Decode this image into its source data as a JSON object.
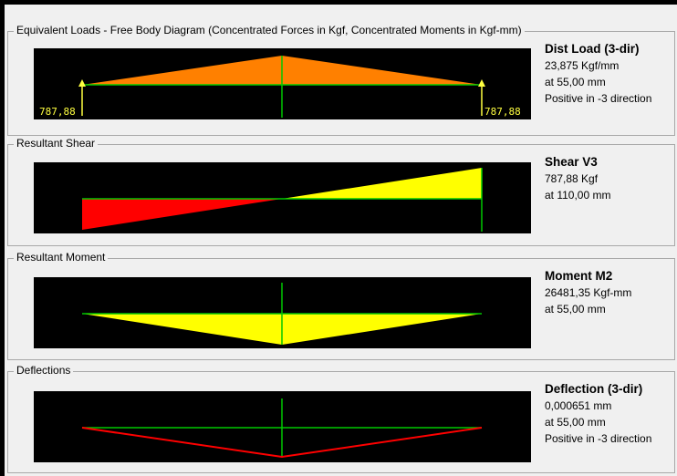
{
  "colors": {
    "background": "#000000",
    "panel": "#f0f0f0",
    "load_fill": "#ff8000",
    "positive_fill": "#ffff00",
    "negative_fill": "#ff0000",
    "axis": "#00c800",
    "deflection_line": "#ff0000",
    "end_label": "#ffff40"
  },
  "load": {
    "title": "Equivalent Loads - Free Body Diagram  (Concentrated Forces in Kgf, Concentrated Moments in Kgf-mm)",
    "left_value": "787,88",
    "right_value": "787,88",
    "info": {
      "heading": "Dist Load (3-dir)",
      "value": "23,875 Kgf/mm",
      "position": "at 55,00 mm",
      "direction": "Positive in -3 direction"
    }
  },
  "shear": {
    "title": "Resultant Shear",
    "info": {
      "heading": "Shear V3",
      "value": "787,88 Kgf",
      "position": "at 110,00 mm"
    }
  },
  "moment": {
    "title": "Resultant Moment",
    "info": {
      "heading": "Moment M2",
      "value": "26481,35 Kgf-mm",
      "position": "at 55,00 mm"
    }
  },
  "deflection": {
    "title": "Deflections",
    "info": {
      "heading": "Deflection (3-dir)",
      "value": "0,000651 mm",
      "position": "at 55,00 mm",
      "direction": "Positive in -3 direction"
    }
  }
}
